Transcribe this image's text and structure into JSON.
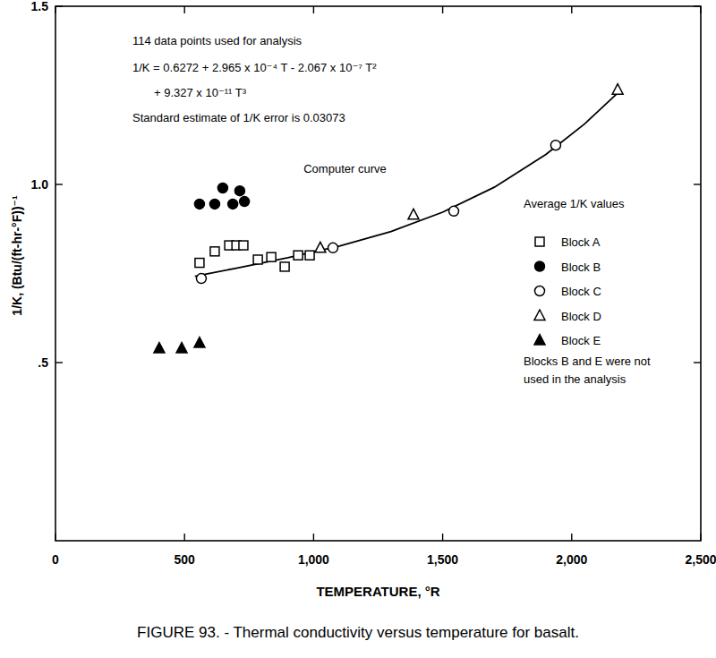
{
  "chart_data": {
    "type": "scatter",
    "title": "FIGURE 93. - Thermal conductivity versus temperature for basalt.",
    "x_label": "TEMPERATURE, °R",
    "y_label": "1/K, (Btu/(ft-hr-°F))⁻¹",
    "xlim": [
      0,
      2500
    ],
    "ylim": [
      0,
      1.5
    ],
    "xticks": [
      0,
      500,
      {
        "value": 1000,
        "label": "1,000"
      },
      {
        "value": 1500,
        "label": "1,500"
      },
      {
        "value": 2000,
        "label": "2,000"
      },
      {
        "value": 2500,
        "label": "2,500"
      }
    ],
    "yticks": [
      {
        "value": 0.5,
        "label": ".5"
      },
      {
        "value": 1.0,
        "label": "1.0"
      },
      {
        "value": 1.5,
        "label": "1.5"
      }
    ],
    "legend": "right",
    "annotations": [
      "114 data points used for analysis",
      "1/K = 0.6272 + 2.965 x 10⁻⁴ T - 2.067 x 10⁻⁷ T²",
      "+ 9.327 x 10⁻¹¹ T³",
      "Standard estimate of 1/K error is 0.03073",
      "Average 1/K values",
      "Blocks B and E were not",
      "used in the analysis"
    ],
    "series": [
      {
        "name": "Block A",
        "type": "scatter",
        "marker": "square-open",
        "color": "#000000",
        "x": [
          558,
          617,
          673,
          701,
          728,
          784,
          836,
          888,
          940,
          985
        ],
        "values": [
          0.78,
          0.812,
          0.829,
          0.829,
          0.829,
          0.789,
          0.796,
          0.769,
          0.801,
          0.801
        ]
      },
      {
        "name": "Block B",
        "type": "scatter",
        "marker": "circle-filled",
        "color": "#000000",
        "x": [
          558,
          617,
          648,
          687,
          714,
          732
        ],
        "values": [
          0.945,
          0.945,
          0.99,
          0.945,
          0.982,
          0.952
        ]
      },
      {
        "name": "Block C",
        "type": "scatter",
        "marker": "circle-open",
        "color": "#000000",
        "x": [
          565,
          1075,
          1543,
          1938
        ],
        "values": [
          0.736,
          0.822,
          0.925,
          1.11
        ]
      },
      {
        "name": "Block D",
        "type": "scatter",
        "marker": "triangle-open",
        "color": "#000000",
        "x": [
          1026,
          1387,
          2178
        ],
        "values": [
          0.822,
          0.915,
          1.266
        ]
      },
      {
        "name": "Block E",
        "type": "scatter",
        "marker": "triangle-filled",
        "color": "#000000",
        "x": [
          402,
          489,
          558
        ],
        "values": [
          0.54,
          0.54,
          0.555
        ]
      },
      {
        "name": "Computer curve",
        "type": "line",
        "line_style": "solid",
        "color": "#000000",
        "x": [
          540,
          700,
          900,
          1100,
          1300,
          1500,
          1700,
          1900,
          2050,
          2180
        ],
        "values": [
          0.742,
          0.765,
          0.794,
          0.827,
          0.868,
          0.922,
          0.992,
          1.084,
          1.17,
          1.258
        ]
      }
    ]
  }
}
